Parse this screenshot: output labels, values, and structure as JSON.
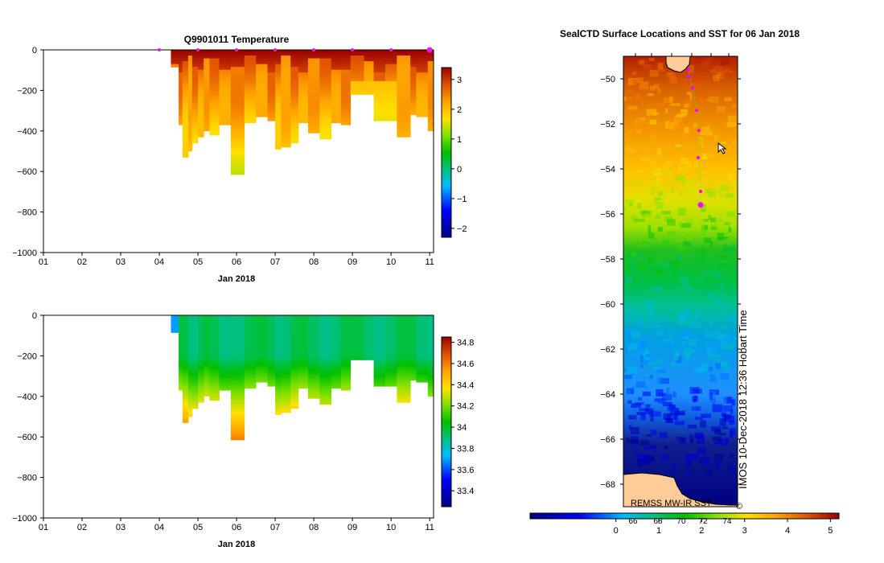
{
  "chart_data": [
    {
      "type": "heatmap",
      "title": "Q9901011  Temperature",
      "xlabel": "Jan 2018",
      "ylabel": "",
      "x_tick_labels": [
        "01",
        "02",
        "03",
        "04",
        "05",
        "06",
        "07",
        "08",
        "09",
        "10",
        "11"
      ],
      "y_tick_labels": [
        "0",
        "−200",
        "−400",
        "−600",
        "−800",
        "−1000"
      ],
      "xlim": [
        1,
        11.1
      ],
      "ylim": [
        -1000,
        0
      ],
      "colorbar": {
        "min": -2.3,
        "max": 3.4,
        "tick_labels": [
          "3",
          "2",
          "1",
          "0",
          "−1",
          "−2"
        ],
        "tick_values": [
          3,
          2,
          1,
          0,
          -1,
          -2
        ]
      },
      "profile_days": [
        4.3,
        4.5,
        4.6,
        4.75,
        4.85,
        5.0,
        5.15,
        5.3,
        5.55,
        5.85,
        6.2,
        6.5,
        6.8,
        7.0,
        7.15,
        7.4,
        7.6,
        7.85,
        8.15,
        8.45,
        8.7,
        8.95,
        9.3,
        9.55,
        9.85,
        10.15,
        10.5,
        10.65,
        10.95
      ],
      "profile_max_depth": [
        85,
        370,
        530,
        500,
        460,
        430,
        400,
        420,
        370,
        615,
        360,
        330,
        350,
        490,
        480,
        460,
        360,
        410,
        440,
        360,
        370,
        220,
        220,
        350,
        350,
        430,
        320,
        330,
        400
      ],
      "surface_markers_days": [
        4,
        5,
        6,
        7,
        8,
        9,
        10,
        11
      ]
    },
    {
      "type": "heatmap",
      "title": "",
      "xlabel": "Jan 2018",
      "ylabel": "",
      "x_tick_labels": [
        "01",
        "02",
        "03",
        "04",
        "05",
        "06",
        "07",
        "08",
        "09",
        "10",
        "11"
      ],
      "y_tick_labels": [
        "0",
        "−200",
        "−400",
        "−600",
        "−800",
        "−1000"
      ],
      "xlim": [
        1,
        11.1
      ],
      "ylim": [
        -1000,
        0
      ],
      "colorbar": {
        "min": 33.25,
        "max": 34.85,
        "tick_labels": [
          "34.8",
          "34.6",
          "34.4",
          "34.2",
          "34",
          "33.8",
          "33.6",
          "33.4"
        ],
        "tick_values": [
          34.8,
          34.6,
          34.4,
          34.2,
          34.0,
          33.8,
          33.6,
          33.4
        ]
      }
    },
    {
      "type": "heatmap",
      "title": "SealCTD Surface Locations and SST for 06 Jan 2018",
      "xlabel": "",
      "ylabel": "",
      "y_tick_labels": [
        "−50",
        "−52",
        "−54",
        "−56",
        "−58",
        "−60",
        "−62",
        "−64",
        "−66",
        "−68"
      ],
      "ylim": [
        -69,
        -49
      ],
      "colorbar": {
        "min": -2,
        "max": 5.2,
        "tick_labels": [
          "0",
          "1",
          "2",
          "3",
          "4",
          "5"
        ],
        "tick_values": [
          0,
          1,
          2,
          3,
          4,
          5
        ]
      },
      "fahrenheit_labels": [
        "66",
        "68",
        "70",
        "72",
        "74"
      ],
      "credit_bottom": "REMSS MW-IR SST",
      "credit_side": "IMOS 10-Dec-2018 12:36 Hobart Time",
      "copyright_symbol": "©",
      "track_latitudes": [
        -49.6,
        -49.9,
        -50.4,
        -51.4,
        -52.3,
        -53.5,
        -55.0,
        -55.6
      ]
    }
  ]
}
